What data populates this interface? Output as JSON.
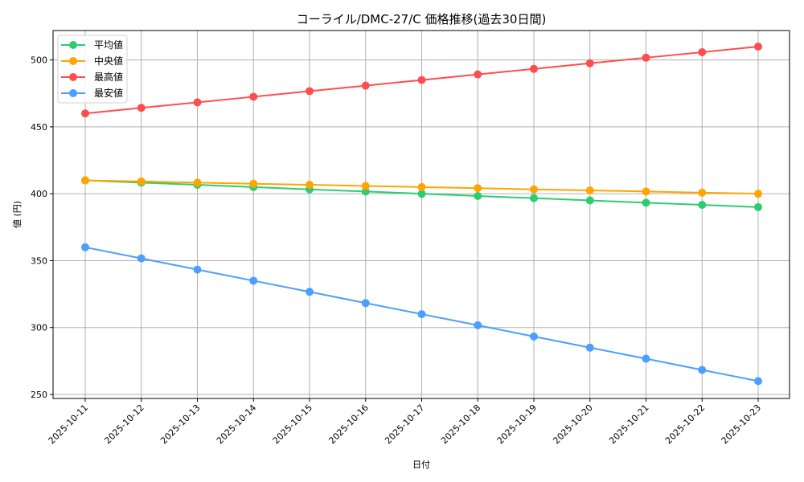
{
  "chart_data": {
    "type": "line",
    "title": "コーライル/DMC-27/C 価格推移(過去30日間)",
    "xlabel": "日付",
    "ylabel": "値 (円)",
    "ylim": [
      247,
      522
    ],
    "yticks": [
      250,
      300,
      350,
      400,
      450,
      500
    ],
    "grid": true,
    "legend_position": "upper left",
    "categories": [
      "2025-10-11",
      "2025-10-12",
      "2025-10-13",
      "2025-10-14",
      "2025-10-15",
      "2025-10-16",
      "2025-10-17",
      "2025-10-18",
      "2025-10-19",
      "2025-10-20",
      "2025-10-21",
      "2025-10-22",
      "2025-10-23"
    ],
    "series": [
      {
        "name": "平均値",
        "color": "#2ecc71",
        "values": [
          410.0,
          408.3,
          406.7,
          405.0,
          403.3,
          401.7,
          400.0,
          398.3,
          396.7,
          395.0,
          393.3,
          391.7,
          390.0
        ]
      },
      {
        "name": "中央値",
        "color": "#ffa500",
        "values": [
          410.0,
          409.2,
          408.3,
          407.5,
          406.7,
          405.8,
          405.0,
          404.2,
          403.3,
          402.5,
          401.7,
          400.8,
          400.0
        ]
      },
      {
        "name": "最高値",
        "color": "#ff4d4d",
        "values": [
          460.0,
          464.2,
          468.3,
          472.5,
          476.7,
          480.8,
          485.0,
          489.2,
          493.3,
          497.5,
          501.7,
          505.8,
          510.0
        ]
      },
      {
        "name": "最安値",
        "color": "#4d9fff",
        "values": [
          360.0,
          351.7,
          343.3,
          335.0,
          326.7,
          318.3,
          310.0,
          301.7,
          293.3,
          285.0,
          276.7,
          268.3,
          260.0
        ]
      }
    ]
  }
}
